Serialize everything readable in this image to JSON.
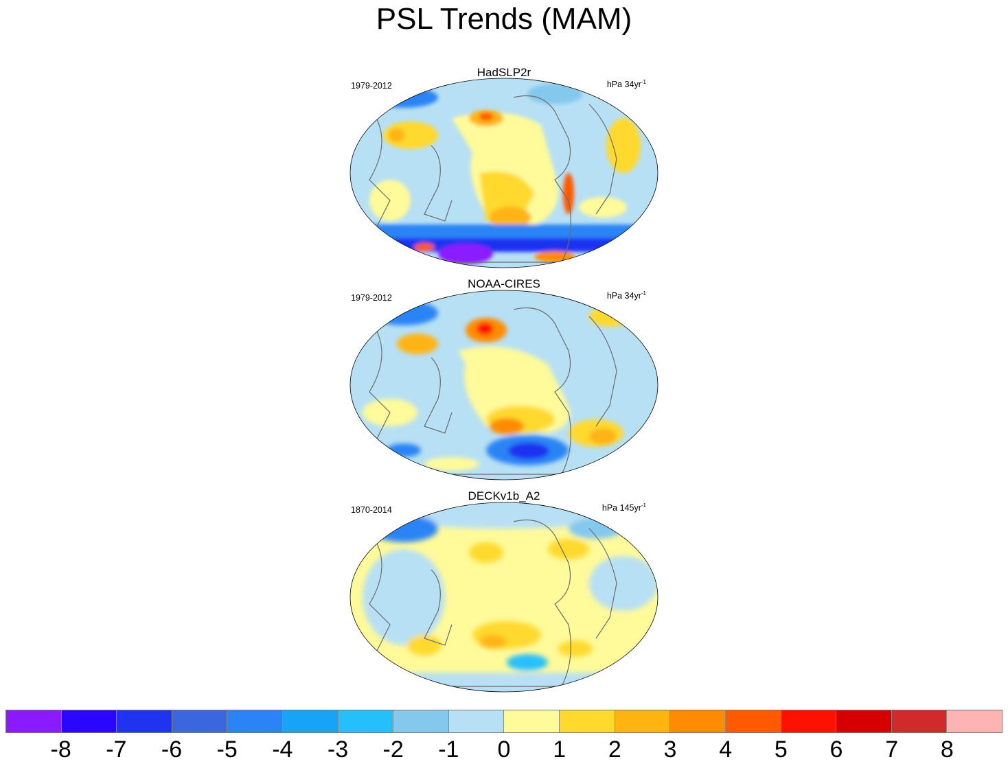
{
  "title": "PSL Trends (MAM)",
  "panels": [
    {
      "name": "HadSLP2r",
      "period": "1979-2012",
      "units": "hPa 34yr",
      "units_exp": "-1"
    },
    {
      "name": "NOAA-CIRES",
      "period": "1979-2012",
      "units": "hPa 34yr",
      "units_exp": "-1"
    },
    {
      "name": "DECKv1b_A2",
      "period": "1870-2014",
      "units": "hPa 145yr",
      "units_exp": "-1"
    }
  ],
  "colorbar": {
    "colors": [
      "#8a1bff",
      "#2a06ff",
      "#1f33f0",
      "#3a66e0",
      "#2b84f5",
      "#17a4f7",
      "#25c0fb",
      "#84c8ee",
      "#b7e0f4",
      "#fffa9a",
      "#ffd92e",
      "#ffb412",
      "#ff8c00",
      "#ff5a00",
      "#ff1100",
      "#d70000",
      "#d02a2a",
      "#ffb3b3"
    ],
    "labels": [
      "-8",
      "-7",
      "-6",
      "-5",
      "-4",
      "-3",
      "-2",
      "-1",
      "0",
      "1",
      "2",
      "3",
      "4",
      "5",
      "6",
      "7",
      "8"
    ]
  }
}
